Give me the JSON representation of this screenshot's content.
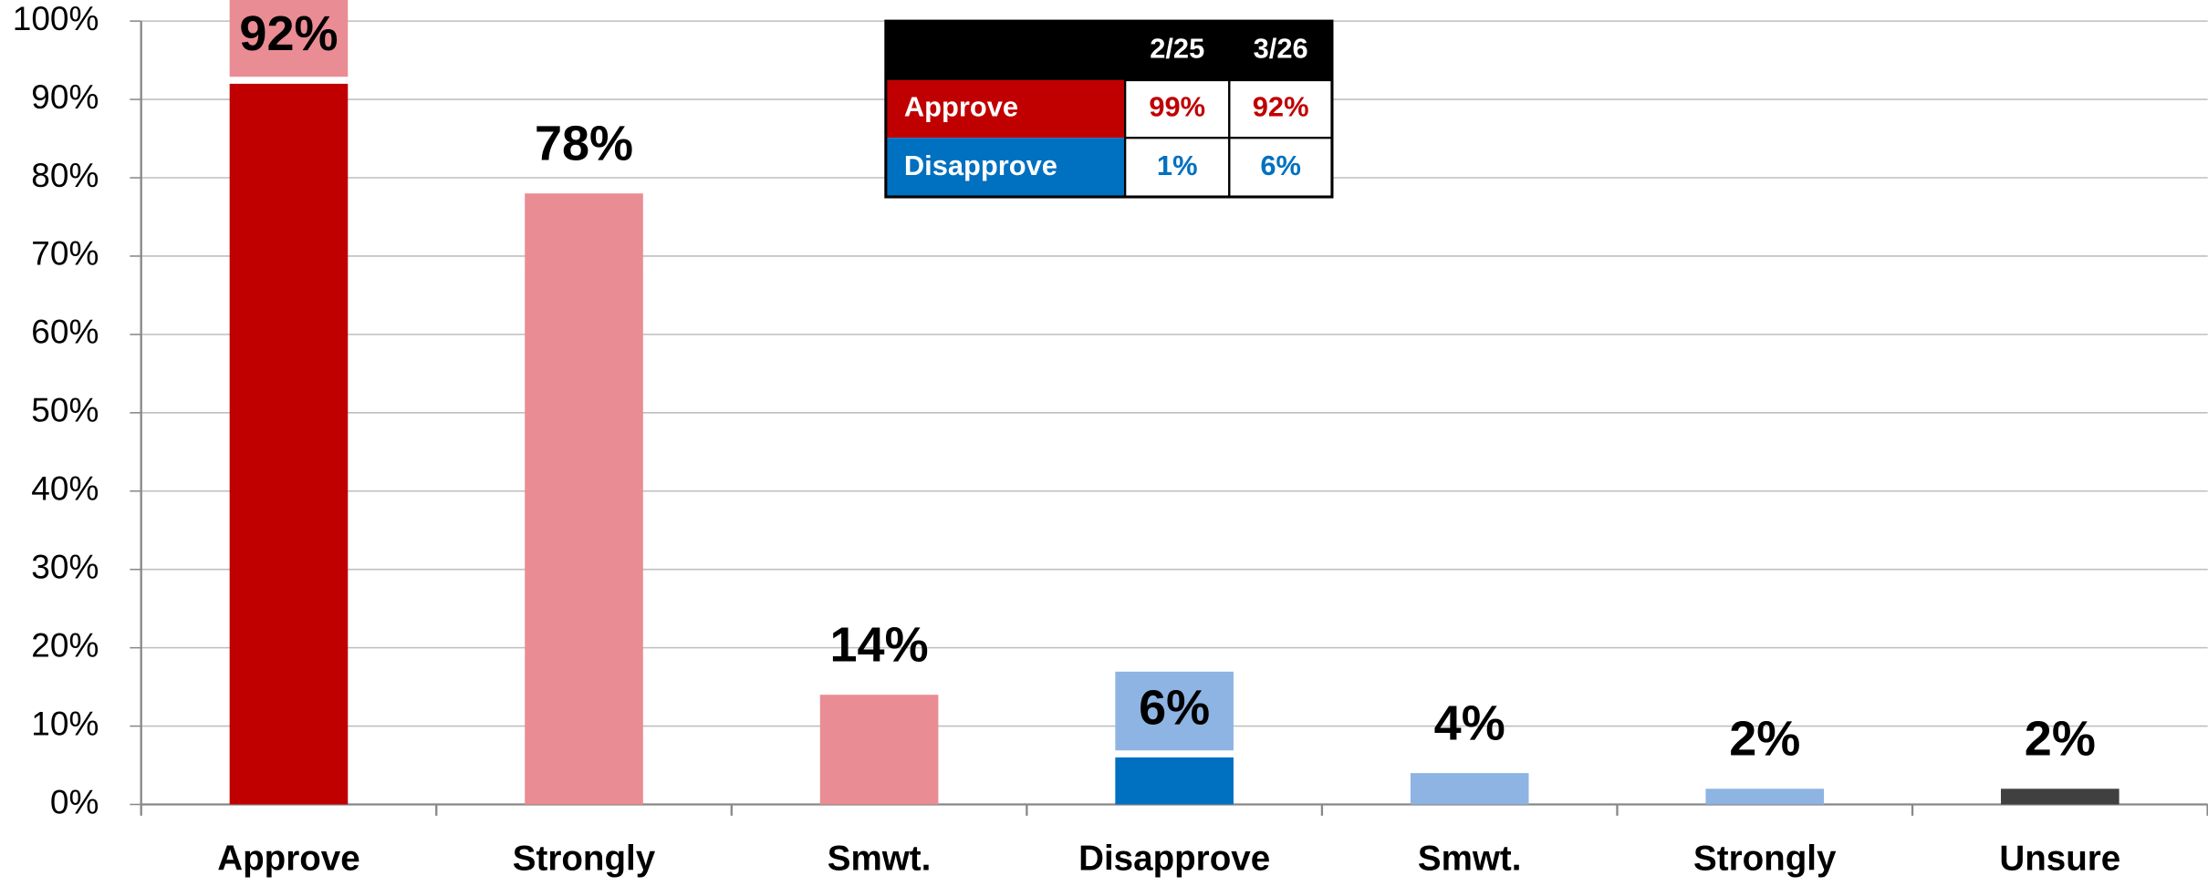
{
  "chart_data": {
    "type": "bar",
    "categories": [
      "Approve",
      "Strongly",
      "Smwt.",
      "Disapprove",
      "Smwt.",
      "Strongly",
      "Unsure"
    ],
    "values": [
      92,
      78,
      14,
      6,
      4,
      2,
      2
    ],
    "value_labels": [
      "92%",
      "78%",
      "14%",
      "6%",
      "4%",
      "2%",
      "2%"
    ],
    "colors": [
      "#c00000",
      "#ea8c93",
      "#ea8c93",
      "#0070c0",
      "#8db4e2",
      "#8db4e2",
      "#404040"
    ],
    "label_box_colors": [
      "#ea8c93",
      null,
      null,
      "#8db4e2",
      null,
      null,
      null
    ],
    "ylim": [
      0,
      100
    ],
    "yticks": [
      {
        "value": 0,
        "label": "0%"
      },
      {
        "value": 10,
        "label": "10%"
      },
      {
        "value": 20,
        "label": "20%"
      },
      {
        "value": 30,
        "label": "30%"
      },
      {
        "value": 40,
        "label": "40%"
      },
      {
        "value": 50,
        "label": "50%"
      },
      {
        "value": 60,
        "label": "60%"
      },
      {
        "value": 70,
        "label": "70%"
      },
      {
        "value": 80,
        "label": "80%"
      },
      {
        "value": 90,
        "label": "90%"
      },
      {
        "value": 100,
        "label": "100%"
      }
    ],
    "grid": true
  },
  "table": {
    "columns": [
      "2/25",
      "3/26"
    ],
    "rows": [
      {
        "label": "Approve",
        "color": "#c00000",
        "values": [
          "99%",
          "92%"
        ]
      },
      {
        "label": "Disapprove",
        "color": "#0070c0",
        "values": [
          "1%",
          "6%"
        ]
      }
    ]
  }
}
